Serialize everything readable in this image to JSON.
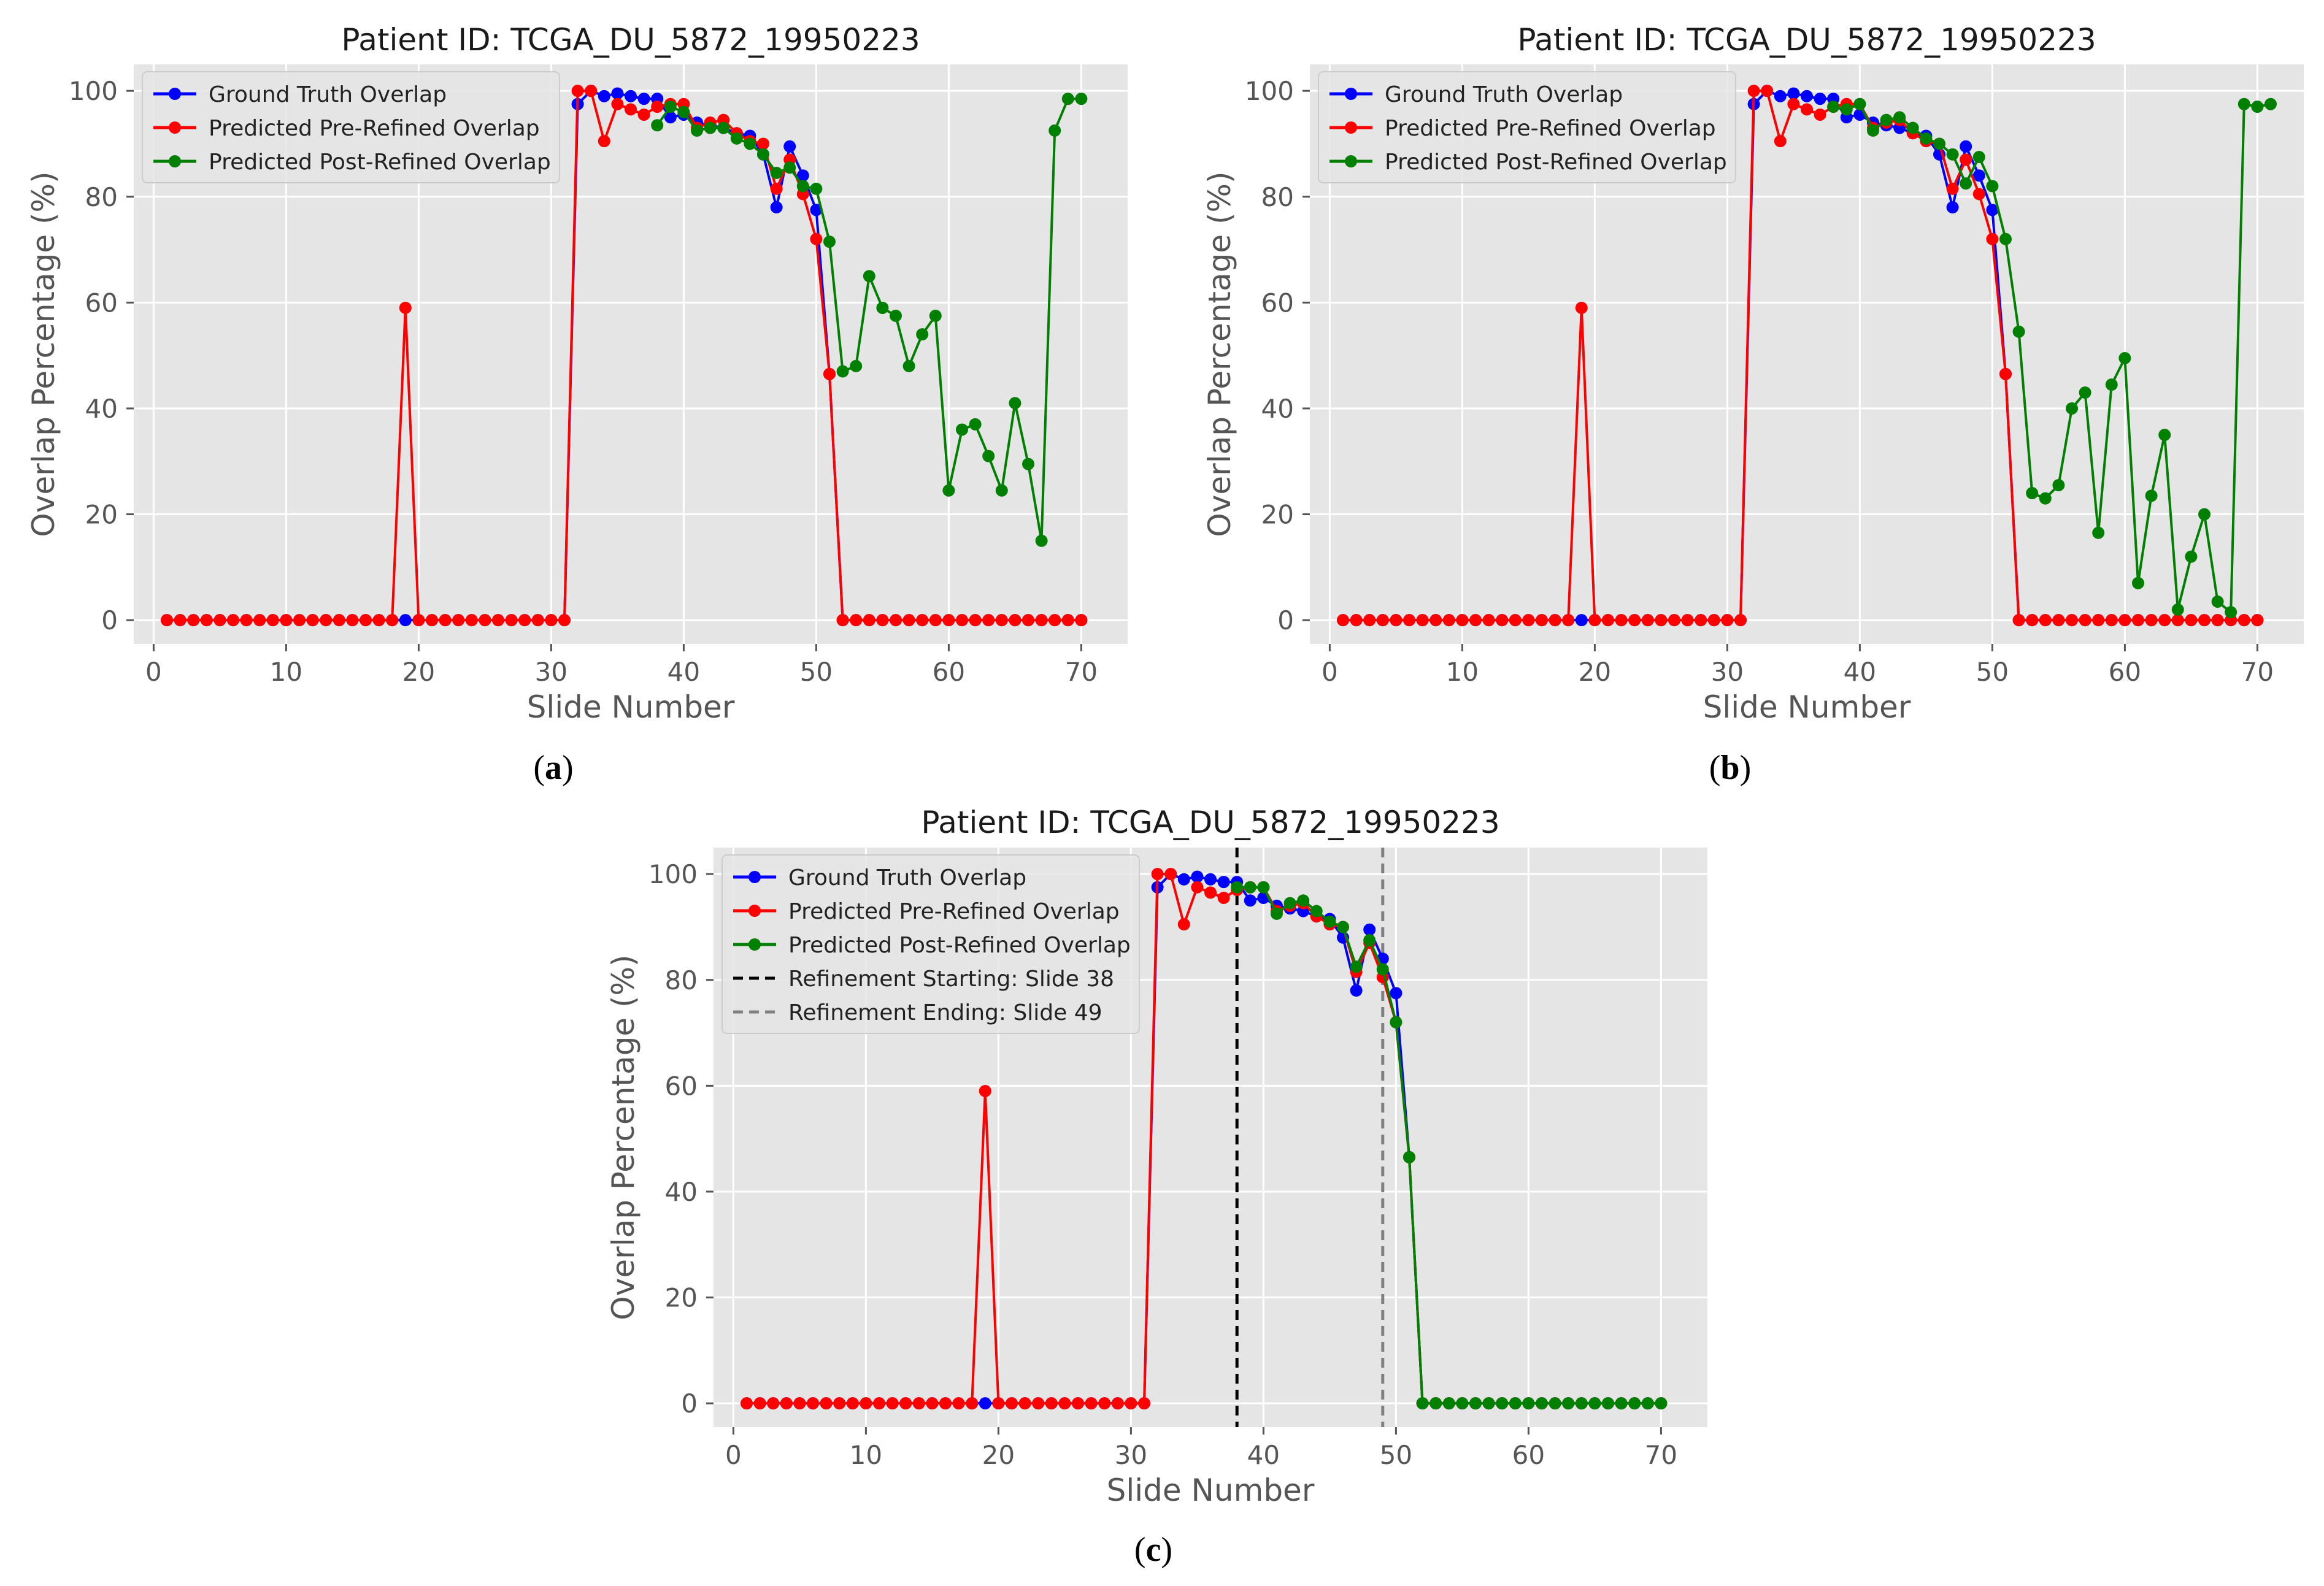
{
  "chart_data": [
    {
      "panel_label": "(a)",
      "panel_letter": "a",
      "type": "line",
      "title": "Patient ID: TCGA_DU_5872_19950223",
      "xlabel": "Slide Number",
      "ylabel": "Overlap Percentage (%)",
      "xlim": [
        -1.5,
        73.5
      ],
      "ylim": [
        -4.5,
        105
      ],
      "xticks": [
        0,
        10,
        20,
        30,
        40,
        50,
        60,
        70
      ],
      "yticks": [
        0,
        20,
        40,
        60,
        80,
        100
      ],
      "grid": true,
      "legend_position": "top-left",
      "series": [
        {
          "name": "Ground Truth Overlap",
          "color": "#0000ff",
          "start": 1,
          "values": [
            0,
            0,
            0,
            0,
            0,
            0,
            0,
            0,
            0,
            0,
            0,
            0,
            0,
            0,
            0,
            0,
            0,
            0,
            0,
            0,
            0,
            0,
            0,
            0,
            0,
            0,
            0,
            0,
            0,
            0,
            0,
            97.5,
            100,
            99,
            99.5,
            99,
            98.5,
            98.5,
            95,
            95.5,
            94,
            93.5,
            93,
            92,
            91.5,
            88,
            78,
            89.5,
            84,
            77.5,
            46.5,
            0,
            0,
            0,
            0,
            0,
            0,
            0,
            0,
            0,
            0,
            0,
            0,
            0,
            0,
            0,
            0,
            0,
            0,
            0
          ]
        },
        {
          "name": "Predicted Pre-Refined Overlap",
          "color": "#ff0000",
          "start": 1,
          "values": [
            0,
            0,
            0,
            0,
            0,
            0,
            0,
            0,
            0,
            0,
            0,
            0,
            0,
            0,
            0,
            0,
            0,
            0,
            59,
            0,
            0,
            0,
            0,
            0,
            0,
            0,
            0,
            0,
            0,
            0,
            0,
            100,
            100,
            90.5,
            97.5,
            96.5,
            95.5,
            97,
            97.5,
            97.5,
            93,
            94,
            94.5,
            92,
            90.5,
            90,
            81.5,
            87,
            80.5,
            72,
            46.5,
            0,
            0,
            0,
            0,
            0,
            0,
            0,
            0,
            0,
            0,
            0,
            0,
            0,
            0,
            0,
            0,
            0,
            0,
            0
          ]
        },
        {
          "name": "Predicted Post-Refined Overlap",
          "color": "#008000",
          "start": 38,
          "values": [
            93.5,
            97,
            96,
            92.5,
            93,
            93,
            91,
            90,
            88,
            84.5,
            85.5,
            82,
            81.5,
            71.5,
            47,
            48,
            65,
            59,
            57.5,
            48,
            54,
            57.5,
            24.5,
            36,
            37,
            31,
            24.5,
            41,
            29.5,
            15,
            92.5,
            98.5,
            98.5
          ]
        }
      ]
    },
    {
      "panel_label": "(b)",
      "panel_letter": "b",
      "type": "line",
      "title": "Patient ID: TCGA_DU_5872_19950223",
      "xlabel": "Slide Number",
      "ylabel": "Overlap Percentage (%)",
      "xlim": [
        -1.5,
        73.5
      ],
      "ylim": [
        -4.5,
        105
      ],
      "xticks": [
        0,
        10,
        20,
        30,
        40,
        50,
        60,
        70
      ],
      "yticks": [
        0,
        20,
        40,
        60,
        80,
        100
      ],
      "grid": true,
      "legend_position": "top-left",
      "series": [
        {
          "name": "Ground Truth Overlap",
          "color": "#0000ff",
          "start": 1,
          "values": [
            0,
            0,
            0,
            0,
            0,
            0,
            0,
            0,
            0,
            0,
            0,
            0,
            0,
            0,
            0,
            0,
            0,
            0,
            0,
            0,
            0,
            0,
            0,
            0,
            0,
            0,
            0,
            0,
            0,
            0,
            0,
            97.5,
            100,
            99,
            99.5,
            99,
            98.5,
            98.5,
            95,
            95.5,
            94,
            93.5,
            93,
            92,
            91.5,
            88,
            78,
            89.5,
            84,
            77.5,
            46.5,
            0,
            0,
            0,
            0,
            0,
            0,
            0,
            0,
            0,
            0,
            0,
            0,
            0,
            0,
            0,
            0,
            0,
            0,
            0
          ]
        },
        {
          "name": "Predicted Pre-Refined Overlap",
          "color": "#ff0000",
          "start": 1,
          "values": [
            0,
            0,
            0,
            0,
            0,
            0,
            0,
            0,
            0,
            0,
            0,
            0,
            0,
            0,
            0,
            0,
            0,
            0,
            59,
            0,
            0,
            0,
            0,
            0,
            0,
            0,
            0,
            0,
            0,
            0,
            0,
            100,
            100,
            90.5,
            97.5,
            96.5,
            95.5,
            97,
            97.5,
            97.5,
            93,
            94,
            94.5,
            92,
            90.5,
            90,
            81.5,
            87,
            80.5,
            72,
            46.5,
            0,
            0,
            0,
            0,
            0,
            0,
            0,
            0,
            0,
            0,
            0,
            0,
            0,
            0,
            0,
            0,
            0,
            0,
            0
          ]
        },
        {
          "name": "Predicted Post-Refined Overlap",
          "color": "#008000",
          "start": 38,
          "values": [
            97,
            96.5,
            97.5,
            92.5,
            94.5,
            95,
            93,
            91,
            90,
            88,
            82.5,
            87.5,
            82,
            72,
            54.5,
            24,
            23,
            25.5,
            40,
            43,
            16.5,
            44.5,
            49.5,
            7,
            23.5,
            35,
            2,
            12,
            20,
            3.5,
            1.5,
            97.5,
            97,
            97.5
          ]
        }
      ]
    },
    {
      "panel_label": "(c)",
      "panel_letter": "c",
      "type": "line",
      "title": "Patient ID: TCGA_DU_5872_19950223",
      "xlabel": "Slide Number",
      "ylabel": "Overlap Percentage (%)",
      "xlim": [
        -1.5,
        73.5
      ],
      "ylim": [
        -4.5,
        105
      ],
      "xticks": [
        0,
        10,
        20,
        30,
        40,
        50,
        60,
        70
      ],
      "yticks": [
        0,
        20,
        40,
        60,
        80,
        100
      ],
      "grid": true,
      "legend_position": "top-left",
      "vlines": [
        {
          "name": "Refinement Starting: Slide 38",
          "x": 38,
          "color": "#000000"
        },
        {
          "name": "Refinement Ending: Slide 49",
          "x": 49,
          "color": "#808080"
        }
      ],
      "series": [
        {
          "name": "Ground Truth Overlap",
          "color": "#0000ff",
          "start": 1,
          "values": [
            0,
            0,
            0,
            0,
            0,
            0,
            0,
            0,
            0,
            0,
            0,
            0,
            0,
            0,
            0,
            0,
            0,
            0,
            0,
            0,
            0,
            0,
            0,
            0,
            0,
            0,
            0,
            0,
            0,
            0,
            0,
            97.5,
            100,
            99,
            99.5,
            99,
            98.5,
            98.5,
            95,
            95.5,
            94,
            93.5,
            93,
            92,
            91.5,
            88,
            78,
            89.5,
            84,
            77.5,
            46.5,
            0,
            0,
            0,
            0,
            0,
            0,
            0,
            0,
            0,
            0,
            0,
            0,
            0,
            0,
            0,
            0,
            0,
            0,
            0
          ]
        },
        {
          "name": "Predicted Pre-Refined Overlap",
          "color": "#ff0000",
          "start": 1,
          "values": [
            0,
            0,
            0,
            0,
            0,
            0,
            0,
            0,
            0,
            0,
            0,
            0,
            0,
            0,
            0,
            0,
            0,
            0,
            59,
            0,
            0,
            0,
            0,
            0,
            0,
            0,
            0,
            0,
            0,
            0,
            0,
            100,
            100,
            90.5,
            97.5,
            96.5,
            95.5,
            97,
            97.5,
            97.5,
            93,
            94,
            94.5,
            92,
            90.5,
            90,
            81.5,
            87,
            80.5,
            72,
            46.5,
            0,
            0,
            0,
            0,
            0,
            0,
            0,
            0,
            0,
            0,
            0,
            0,
            0,
            0,
            0,
            0,
            0,
            0,
            0
          ]
        },
        {
          "name": "Predicted Post-Refined Overlap",
          "color": "#008000",
          "start": 38,
          "values": [
            97.5,
            97.5,
            97.5,
            92.5,
            94.5,
            95,
            93,
            91,
            90,
            82.5,
            87.5,
            82,
            72,
            46.5,
            0,
            0,
            0,
            0,
            0,
            0,
            0,
            0,
            0,
            0,
            0,
            0,
            0,
            0,
            0,
            0,
            0,
            0,
            0
          ]
        }
      ]
    }
  ],
  "colors": {
    "plot_background": "#e5e5e5",
    "grid": "#ffffff",
    "axis_text": "#555555",
    "title_text": "#1a1a1a"
  }
}
